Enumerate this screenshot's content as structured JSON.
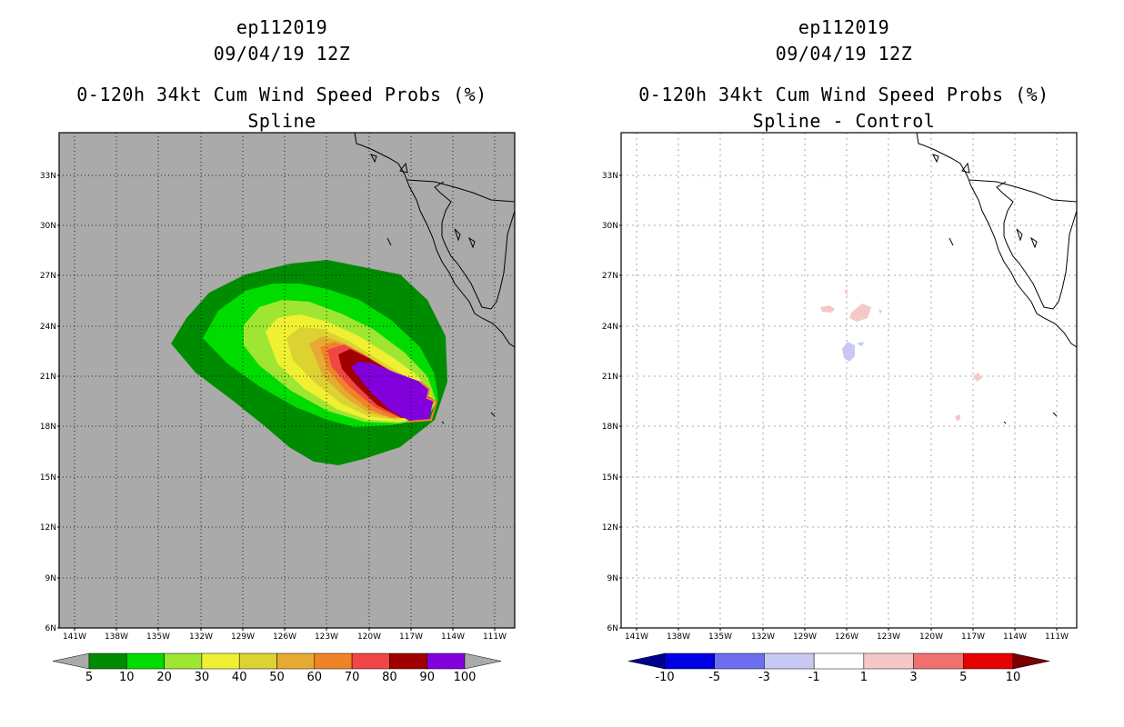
{
  "left": {
    "storm_id": "ep112019",
    "datetime": "09/04/19 12Z",
    "product": "0-120h 34kt Cum Wind Speed Probs (%)",
    "subtitle": "Spline",
    "background_color": "#aaaaaa",
    "colorbar": {
      "colors": [
        "#008c00",
        "#00dc00",
        "#9ee632",
        "#f0f032",
        "#dcd232",
        "#e6aa32",
        "#f08228",
        "#f04646",
        "#a00000",
        "#8200dc"
      ],
      "labels": [
        "5",
        "10",
        "20",
        "30",
        "40",
        "50",
        "60",
        "70",
        "80",
        "90",
        "100"
      ],
      "under_color": "#aaaaaa",
      "over_color": "#aaaaaa"
    }
  },
  "right": {
    "storm_id": "ep112019",
    "datetime": "09/04/19 12Z",
    "product": "0-120h 34kt Cum Wind Speed Probs (%)",
    "subtitle": "Spline - Control",
    "background_color": "#ffffff",
    "colorbar": {
      "colors": [
        "#0000e6",
        "#6e6ef0",
        "#c8c8f5",
        "#ffffff",
        "#f5c8c8",
        "#f07070",
        "#e60000"
      ],
      "labels": [
        "-10",
        "-5",
        "-3",
        "-1",
        "1",
        "3",
        "5",
        "10"
      ],
      "under_color": "#00008c",
      "over_color": "#780000"
    }
  },
  "axes": {
    "lat_labels": [
      "33N",
      "30N",
      "27N",
      "24N",
      "21N",
      "18N",
      "15N",
      "12N",
      "9N",
      "6N"
    ],
    "lon_labels": [
      "141W",
      "138W",
      "135W",
      "132W",
      "129W",
      "126W",
      "123W",
      "120W",
      "117W",
      "114W",
      "111W"
    ]
  }
}
